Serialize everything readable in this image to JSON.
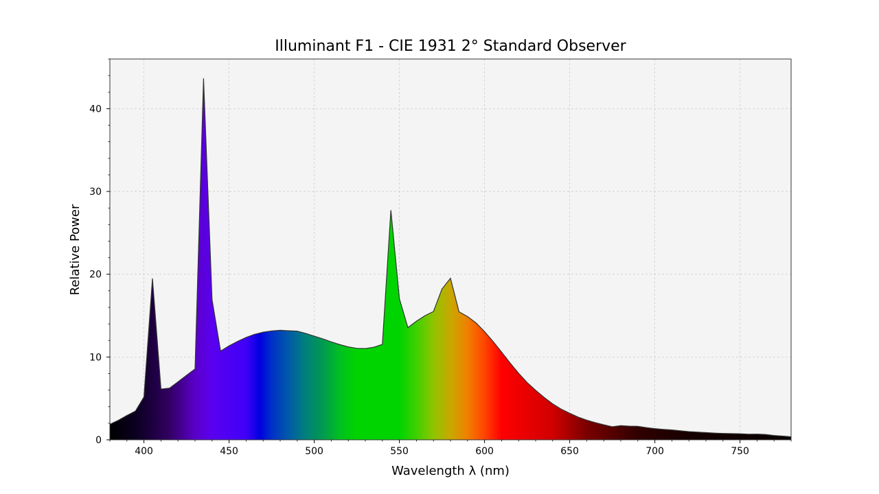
{
  "chart_data": {
    "type": "area",
    "title": "Illuminant F1 - CIE 1931 2° Standard Observer",
    "xlabel": "Wavelength λ (nm)",
    "ylabel": "Relative Power",
    "xlim": [
      380,
      780
    ],
    "ylim": [
      0,
      46
    ],
    "xticks": [
      400,
      450,
      500,
      550,
      600,
      650,
      700,
      750
    ],
    "xtick_labels": [
      "400",
      "450",
      "500",
      "550",
      "600",
      "650",
      "700",
      "750"
    ],
    "yticks": [
      0,
      10,
      20,
      30,
      40
    ],
    "ytick_labels": [
      "0",
      "10",
      "20",
      "30",
      "40"
    ],
    "grid": true,
    "fill": "visible-spectrum gradient",
    "background_color": "#f4f4f4",
    "line_color": "#333333",
    "x": [
      380,
      385,
      390,
      395,
      400,
      405,
      410,
      415,
      420,
      425,
      430,
      435,
      440,
      445,
      450,
      455,
      460,
      465,
      470,
      475,
      480,
      485,
      490,
      495,
      500,
      505,
      510,
      515,
      520,
      525,
      530,
      535,
      540,
      545,
      550,
      555,
      560,
      565,
      570,
      575,
      580,
      585,
      590,
      595,
      600,
      605,
      610,
      615,
      620,
      625,
      630,
      635,
      640,
      645,
      650,
      655,
      660,
      665,
      670,
      675,
      680,
      685,
      690,
      695,
      700,
      705,
      710,
      715,
      720,
      725,
      730,
      735,
      740,
      745,
      750,
      755,
      760,
      765,
      770,
      775,
      780
    ],
    "y": [
      1.87,
      2.36,
      2.94,
      3.47,
      5.17,
      19.49,
      6.13,
      6.24,
      7.01,
      7.79,
      8.56,
      43.67,
      16.94,
      10.72,
      11.35,
      11.89,
      12.37,
      12.75,
      13.0,
      13.15,
      13.23,
      13.17,
      13.13,
      12.85,
      12.52,
      12.2,
      11.83,
      11.5,
      11.22,
      11.05,
      11.03,
      11.18,
      11.53,
      27.74,
      17.05,
      13.55,
      14.33,
      14.99,
      15.5,
      18.22,
      19.51,
      15.47,
      14.89,
      14.12,
      13.07,
      11.88,
      10.6,
      9.28,
      8.04,
      6.92,
      5.98,
      5.12,
      4.34,
      3.71,
      3.21,
      2.74,
      2.38,
      2.08,
      1.82,
      1.58,
      1.71,
      1.65,
      1.63,
      1.47,
      1.35,
      1.26,
      1.19,
      1.09,
      0.99,
      0.93,
      0.87,
      0.81,
      0.77,
      0.75,
      0.73,
      0.68,
      0.69,
      0.64,
      0.52,
      0.45,
      0.37
    ]
  }
}
